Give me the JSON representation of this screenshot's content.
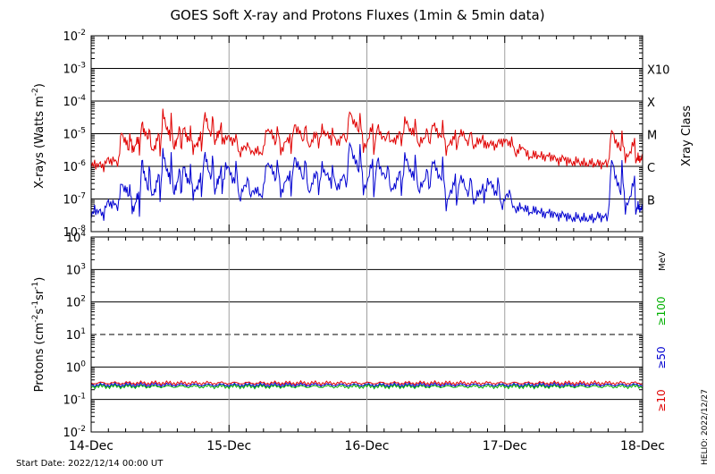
{
  "title": "GOES Soft X-ray and Protons Fluxes   (1min & 5min data)",
  "start_date": "Start Date: 2022/12/14 00:00 UT",
  "helio_label": "HELIO: 2022/12/27",
  "colors": {
    "xray_long": "#e00000",
    "xray_short": "#0000d0",
    "p10": "#e00000",
    "p50": "#0000d0",
    "p100": "#00b000",
    "grid": "#000000",
    "vgrid": "#a0a0a0"
  },
  "chart_data": [
    {
      "type": "line",
      "panel": "xray",
      "ylabel_main": "X-rays (Watts m",
      "ylabel_sup": "-2",
      "ylabel_tail": ")",
      "y_scale": "log",
      "ylim": [
        1e-08,
        0.01
      ],
      "yticks": [
        {
          "base": "10",
          "exp": "-8"
        },
        {
          "base": "10",
          "exp": "-7"
        },
        {
          "base": "10",
          "exp": "-6"
        },
        {
          "base": "10",
          "exp": "-5"
        },
        {
          "base": "10",
          "exp": "-4"
        },
        {
          "base": "10",
          "exp": "-3"
        },
        {
          "base": "10",
          "exp": "-2"
        }
      ],
      "class_labels": [
        "B",
        "C",
        "M",
        "X",
        "X10"
      ],
      "class_axis_label": "Xray Class",
      "x_days": [
        "14-Dec",
        "15-Dec",
        "16-Dec",
        "17-Dec",
        "18-Dec"
      ],
      "series": [
        {
          "key": "long",
          "x": [
            0.0,
            0.1,
            0.2,
            0.28,
            0.35,
            0.42,
            0.5,
            0.58,
            0.65,
            0.72,
            0.8,
            0.88,
            0.95,
            1.05,
            1.15,
            1.25,
            1.35,
            1.45,
            1.55,
            1.65,
            1.75,
            1.85,
            1.95,
            2.05,
            2.15,
            2.25,
            2.35,
            2.45,
            2.55,
            2.65,
            2.75,
            2.85,
            2.95,
            3.05,
            3.15,
            3.25,
            3.35,
            3.45,
            3.55,
            3.65,
            3.75,
            3.85,
            3.95,
            4.0
          ],
          "y": [
            9e-07,
            1.2e-06,
            1.6e-06,
            1.1e-05,
            3e-06,
            2e-05,
            2.5e-06,
            4e-05,
            3e-06,
            1.5e-05,
            3e-06,
            4e-05,
            5e-06,
            8e-06,
            2.5e-06,
            3e-06,
            1.6e-05,
            3e-06,
            2e-05,
            4e-06,
            1.4e-05,
            5e-06,
            4.5e-05,
            3e-06,
            1.5e-05,
            5e-06,
            2.5e-05,
            4e-06,
            2e-05,
            3e-06,
            1.2e-05,
            4e-06,
            5e-06,
            6e-06,
            2.5e-06,
            2e-06,
            2e-06,
            1.5e-06,
            1.3e-06,
            1.2e-06,
            1.2e-06,
            1.2e-05,
            1.5e-06,
            1.8e-06
          ]
        },
        {
          "key": "short",
          "x": [
            0.0,
            0.1,
            0.2,
            0.28,
            0.35,
            0.42,
            0.5,
            0.58,
            0.65,
            0.72,
            0.8,
            0.88,
            0.95,
            1.05,
            1.15,
            1.25,
            1.35,
            1.45,
            1.55,
            1.65,
            1.75,
            1.85,
            1.95,
            2.05,
            2.15,
            2.25,
            2.35,
            2.45,
            2.55,
            2.65,
            2.75,
            2.85,
            2.95,
            3.05,
            3.15,
            3.25,
            3.35,
            3.45,
            3.55,
            3.65,
            3.75,
            3.85,
            3.95,
            4.0
          ],
          "y": [
            2.5e-08,
            5e-08,
            8e-08,
            3e-07,
            4e-08,
            1.5e-06,
            1e-07,
            2.5e-06,
            1.2e-07,
            1e-06,
            1.2e-07,
            2.5e-06,
            1.5e-07,
            1.2e-06,
            1e-07,
            2e-07,
            1.5e-06,
            1.5e-07,
            2e-06,
            1.5e-07,
            1e-06,
            2e-07,
            5e-06,
            1.5e-07,
            1.5e-06,
            1.5e-07,
            2e-06,
            1.5e-07,
            1.5e-06,
            6e-08,
            5e-07,
            8e-08,
            4e-07,
            6e-08,
            5e-08,
            4e-08,
            3.5e-08,
            3e-08,
            2.5e-08,
            2.5e-08,
            3e-08,
            1.5e-06,
            4e-08,
            6e-08
          ]
        }
      ]
    },
    {
      "type": "line",
      "panel": "protons",
      "ylabel_main": "Protons (cm",
      "ylabel_sup1": "-2",
      "ylabel_mid1": "s",
      "ylabel_sup2": "-1",
      "ylabel_mid2": "sr",
      "ylabel_sup3": "-1",
      "ylabel_tail": ")",
      "y_scale": "log",
      "ylim": [
        0.01,
        10000
      ],
      "yticks": [
        {
          "base": "10",
          "exp": "-2"
        },
        {
          "base": "10",
          "exp": "-1"
        },
        {
          "base": "10",
          "exp": "0"
        },
        {
          "base": "10",
          "exp": "1"
        },
        {
          "base": "10",
          "exp": "2"
        },
        {
          "base": "10",
          "exp": "3"
        },
        {
          "base": "10",
          "exp": "4"
        }
      ],
      "threshold": 10,
      "units_label": "MeV",
      "energy_labels": [
        "≥100",
        "≥50",
        "≥10"
      ],
      "x_days": [
        "14-Dec",
        "15-Dec",
        "16-Dec",
        "17-Dec",
        "18-Dec"
      ],
      "series": [
        {
          "key": "p10",
          "x": [
            0,
            4
          ],
          "y": [
            0.32,
            0.32
          ]
        },
        {
          "key": "p50",
          "x": [
            0,
            4
          ],
          "y": [
            0.28,
            0.28
          ]
        },
        {
          "key": "p100",
          "x": [
            0,
            4
          ],
          "y": [
            0.25,
            0.25
          ]
        }
      ]
    }
  ]
}
